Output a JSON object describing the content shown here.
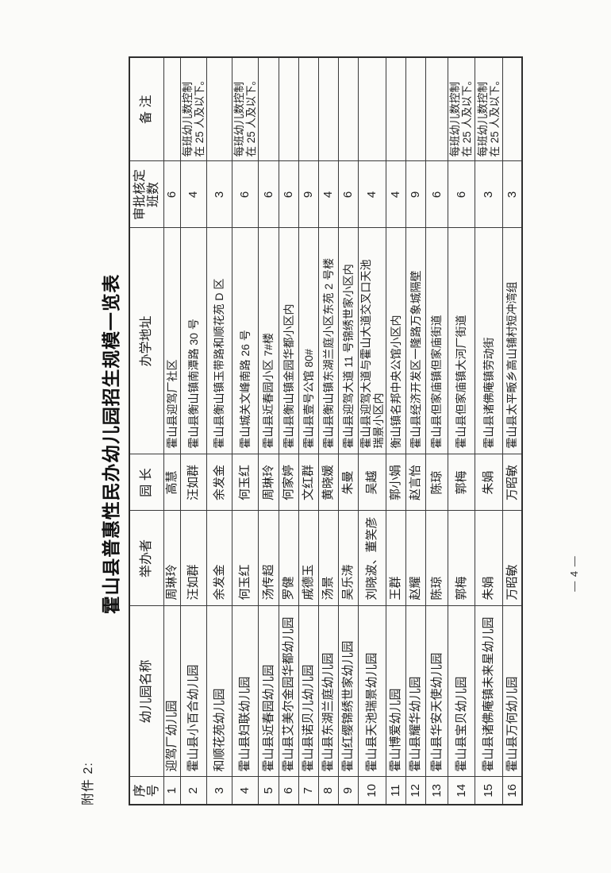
{
  "attachment_label": "附件 2:",
  "title": "霍山县普惠性民办幼儿园招生规模一览表",
  "page_number": "— 4 —",
  "table": {
    "columns": {
      "no": "序\n号",
      "name": "幼儿园名称",
      "organizer": "举办者",
      "principal": "园 长",
      "address": "办学地址",
      "classes": "审批核定\n班数",
      "remark": "备 注"
    },
    "col_keys": [
      "no",
      "name",
      "organizer",
      "principal",
      "address",
      "classes",
      "remark"
    ],
    "rows": [
      {
        "no": "1",
        "name": "迎驾厂幼儿园",
        "organizer": "周琳玲",
        "principal": "高慧",
        "address": "霍山县迎驾厂社区",
        "classes": "6",
        "remark": ""
      },
      {
        "no": "2",
        "name": "霍山县小百合幼儿园",
        "organizer": "汪如群",
        "principal": "汪如群",
        "address": "霍山县衡山镇南潭路 30 号",
        "classes": "4",
        "remark": "每班幼儿数控制\n在 25 人及以下。"
      },
      {
        "no": "3",
        "name": "和顺花苑幼儿园",
        "organizer": "余发金",
        "principal": "余发金",
        "address": "霍山县衡山镇玉带路和顺花苑 D 区",
        "classes": "3",
        "remark": ""
      },
      {
        "no": "4",
        "name": "霍山县妇联幼儿园",
        "organizer": "何玉红",
        "principal": "何玉红",
        "address": "霍山城关文峰南路 26 号",
        "classes": "6",
        "remark": "每班幼儿数控制\n在 25 人及以下。"
      },
      {
        "no": "5",
        "name": "霍山县近春园幼儿园",
        "organizer": "汤传超",
        "principal": "周琳玲",
        "address": "霍山县近春园小区 7#楼",
        "classes": "6",
        "remark": ""
      },
      {
        "no": "6",
        "name": "霍山县艾美尔金园华都幼儿园",
        "organizer": "罗健",
        "principal": "何家婷",
        "address": "霍山县衡山镇金园华都小区内",
        "classes": "6",
        "remark": ""
      },
      {
        "no": "7",
        "name": "霍山县诺贝儿幼儿园",
        "organizer": "戚德玉",
        "principal": "文红群",
        "address": "霍山县壹号公馆 80#",
        "classes": "9",
        "remark": ""
      },
      {
        "no": "8",
        "name": "霍山县东湖兰庭幼儿园",
        "organizer": "汤景",
        "principal": "黄晓媛",
        "address": "霍山县衡山镇东湖兰庭小区东苑 2 号楼",
        "classes": "4",
        "remark": ""
      },
      {
        "no": "9",
        "name": "霍山红缨锦绣世家幼儿园",
        "organizer": "吴乐涛",
        "principal": "朱曼",
        "address": "霍山县迎驾大道 11 号锦绣世家小区内",
        "classes": "6",
        "remark": ""
      },
      {
        "no": "10",
        "name": "霍山县天池瑞景幼儿园",
        "organizer": "刘晓波、董笑彦",
        "principal": "吴越",
        "address": "霍山县迎驾大道与霍山大道交叉口天池\n瑞景小区内",
        "classes": "4",
        "remark": ""
      },
      {
        "no": "11",
        "name": "霍山博爱幼儿园",
        "organizer": "王群",
        "principal": "郭小娟",
        "address": "衡山镇名邦中央公馆小区内",
        "classes": "4",
        "remark": ""
      },
      {
        "no": "12",
        "name": "霍山县耀华幼儿园",
        "organizer": "赵耀",
        "principal": "赵言怡",
        "address": "霍山县经济开发区一隆路万象城隔壁",
        "classes": "9",
        "remark": ""
      },
      {
        "no": "13",
        "name": "霍山县华安天使幼儿园",
        "organizer": "陈琼",
        "principal": "陈琼",
        "address": "霍山县但家庙镇但家庙街道",
        "classes": "6",
        "remark": ""
      },
      {
        "no": "14",
        "name": "霍山县宝贝幼儿园",
        "organizer": "郭梅",
        "principal": "郭梅",
        "address": "霍山县但家庙镇大河厂街道",
        "classes": "6",
        "remark": "每班幼儿数控制\n在 25 人及以下。"
      },
      {
        "no": "15",
        "name": "霍山县诸佛庵镇未来星幼儿园",
        "organizer": "朱娟",
        "principal": "朱娟",
        "address": "霍山县诸佛庵镇劳动街",
        "classes": "3",
        "remark": "每班幼儿数控制\n在 25 人及以下。"
      },
      {
        "no": "16",
        "name": "霍山县万何幼儿园",
        "organizer": "万昭敏",
        "principal": "万昭敏",
        "address": "霍山县太平畈乡高山铺村短冲湾组",
        "classes": "3",
        "remark": ""
      }
    ]
  }
}
